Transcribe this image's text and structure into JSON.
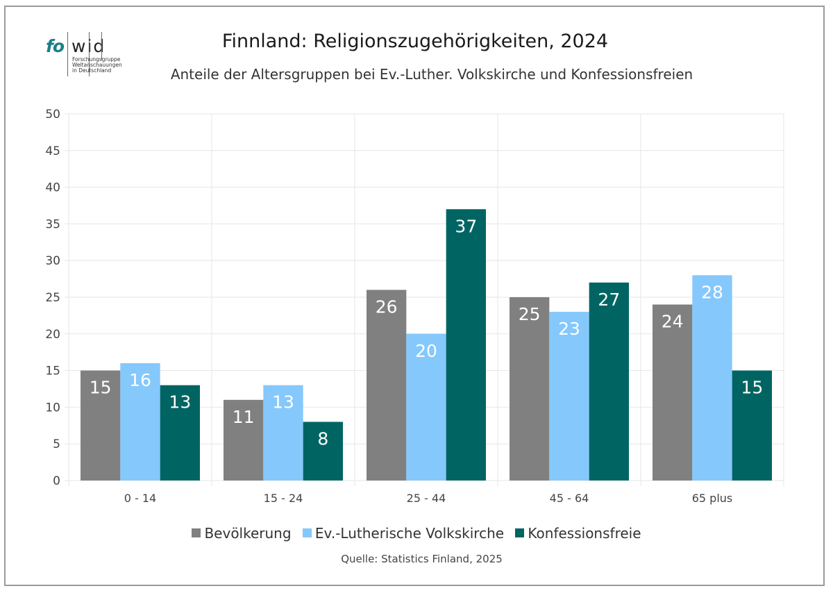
{
  "logo": {
    "part1": "fo",
    "part2": "wid",
    "lines": [
      "Forschungsgruppe",
      "Weltanschauungen",
      "in Deutschland"
    ]
  },
  "colors": {
    "Bevölkerung": "#808080",
    "Ev.-Lutherische Volkskirche": "#85c8fc",
    "Konfessionsfreie": "#006562",
    "grid": "#e6e6e6",
    "label": "#ffffff"
  },
  "chart_data": {
    "type": "bar",
    "title": "Finnland: Religionszugehörigkeiten, 2024",
    "subtitle": "Anteile der Altersgruppen bei Ev.-Luther. Volkskirche und Konfessionsfreien",
    "xlabel": "",
    "ylabel": "",
    "ylim": [
      0,
      50
    ],
    "yticks": [
      0,
      5,
      10,
      15,
      20,
      25,
      30,
      35,
      40,
      45,
      50
    ],
    "grid": true,
    "categories": [
      "0 - 14",
      "15 - 24",
      "25 - 44",
      "45 - 64",
      "65 plus"
    ],
    "series": [
      {
        "name": "Bevölkerung",
        "values": [
          15,
          11,
          26,
          25,
          24
        ]
      },
      {
        "name": "Ev.-Lutherische Volkskirche",
        "values": [
          16,
          13,
          20,
          23,
          28
        ]
      },
      {
        "name": "Konfessionsfreie",
        "values": [
          13,
          8,
          37,
          27,
          15
        ]
      }
    ],
    "data_labels": true,
    "legend_position": "bottom",
    "source": "Quelle: Statistics Finland, 2025"
  }
}
